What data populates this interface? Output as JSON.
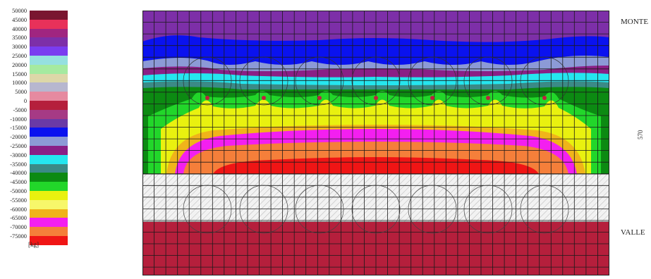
{
  "legend": {
    "unit": "[kg]",
    "entries": [
      {
        "label": "50000",
        "color": "#7a1630"
      },
      {
        "label": "45000",
        "color": "#e8315a"
      },
      {
        "label": "40000",
        "color": "#a02580"
      },
      {
        "label": "35000",
        "color": "#7d2fa8"
      },
      {
        "label": "30000",
        "color": "#7a3cf0"
      },
      {
        "label": "25000",
        "color": "#95e0e0"
      },
      {
        "label": "20000",
        "color": "#a5eaa0"
      },
      {
        "label": "15000",
        "color": "#ddd7a8"
      },
      {
        "label": "10000",
        "color": "#b7b7cf"
      },
      {
        "label": "5000",
        "color": "#e68aa0"
      },
      {
        "label": "0",
        "color": "#b51f3c"
      },
      {
        "label": "-5000",
        "color": "#a63a85"
      },
      {
        "label": "-10000",
        "color": "#6a3aa6"
      },
      {
        "label": "-15000",
        "color": "#0a12ef"
      },
      {
        "label": "-20000",
        "color": "#8c9ad6"
      },
      {
        "label": "-25000",
        "color": "#8a1f86"
      },
      {
        "label": "-30000",
        "color": "#25e6ef"
      },
      {
        "label": "-35000",
        "color": "#3b8a86"
      },
      {
        "label": "-40000",
        "color": "#0c8a12"
      },
      {
        "label": "-45000",
        "color": "#22d62a"
      },
      {
        "label": "-50000",
        "color": "#e9f10f"
      },
      {
        "label": "-55000",
        "color": "#f7f76a"
      },
      {
        "label": "-60000",
        "color": "#f0b41a"
      },
      {
        "label": "-65000",
        "color": "#f31ff0"
      },
      {
        "label": "-70000",
        "color": "#f57f3a"
      },
      {
        "label": "-75000",
        "color": "#f01515"
      }
    ]
  },
  "labels": {
    "monte": "MONTE",
    "valle": "VALLE",
    "dimension": "570"
  },
  "section": {
    "columns": [
      {
        "name": "top band",
        "color": "#7d2fa8"
      },
      {
        "name": "blue band",
        "color": "#0a12ef"
      },
      {
        "name": "lining slab",
        "color": "#f0f0f0"
      },
      {
        "name": "bottom slab",
        "color": "#b51f3c"
      }
    ]
  }
}
